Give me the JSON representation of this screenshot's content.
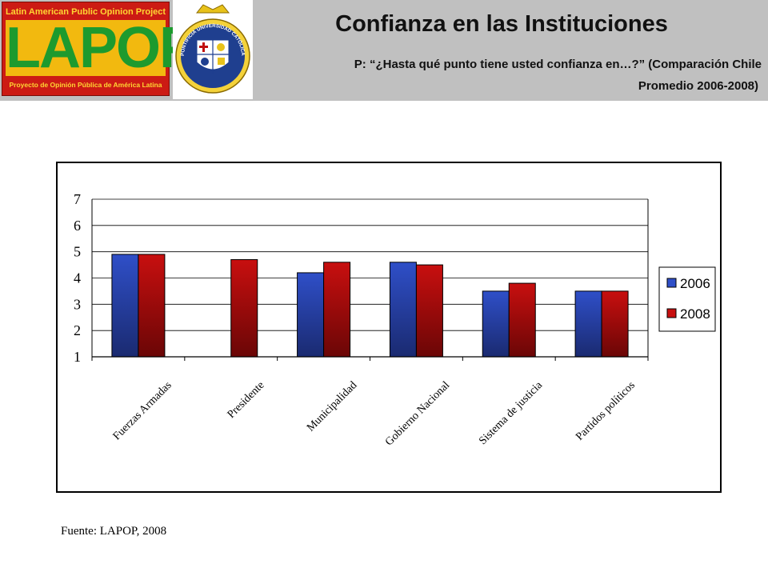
{
  "header": {
    "logo_top": "Latin American Public Opinion Project",
    "logo_word": "LAPOP",
    "logo_bottom": "Proyecto de Opinión Pública de América Latina",
    "seal_text": "PONTIFICIA UNIVERSIDAD CATÓLICA DE CHILE",
    "title": "Confianza en las Instituciones",
    "question": "P: “¿Hasta qué punto tiene usted confianza en…?” (Comparación Chile",
    "question_cont": "Promedio 2006-2008)"
  },
  "colors": {
    "header_bg": "#c0c0c0",
    "series_2006": "#2f4fc8",
    "series_2008": "#c80f0f",
    "lapop_red": "#cc1b14",
    "lapop_gold": "#f2b90f",
    "lapop_green": "#1d9a2e"
  },
  "chart_data": {
    "type": "bar",
    "categories": [
      "Fuerzas Armadas",
      "Presidente",
      "Municipalidad",
      "Gobierno Nacional",
      "Sistema de justicia",
      "Partidos políticos"
    ],
    "series": [
      {
        "name": "2006",
        "values": [
          4.9,
          null,
          4.2,
          4.6,
          3.5,
          3.5
        ]
      },
      {
        "name": "2008",
        "values": [
          4.9,
          4.7,
          4.6,
          4.5,
          3.8,
          3.5
        ]
      }
    ],
    "yticks": [
      1,
      2,
      3,
      4,
      5,
      6,
      7
    ],
    "ylim": [
      1,
      7
    ],
    "grid": true,
    "legend_position": "right"
  },
  "footer": {
    "source": "Fuente: LAPOP, 2008"
  }
}
